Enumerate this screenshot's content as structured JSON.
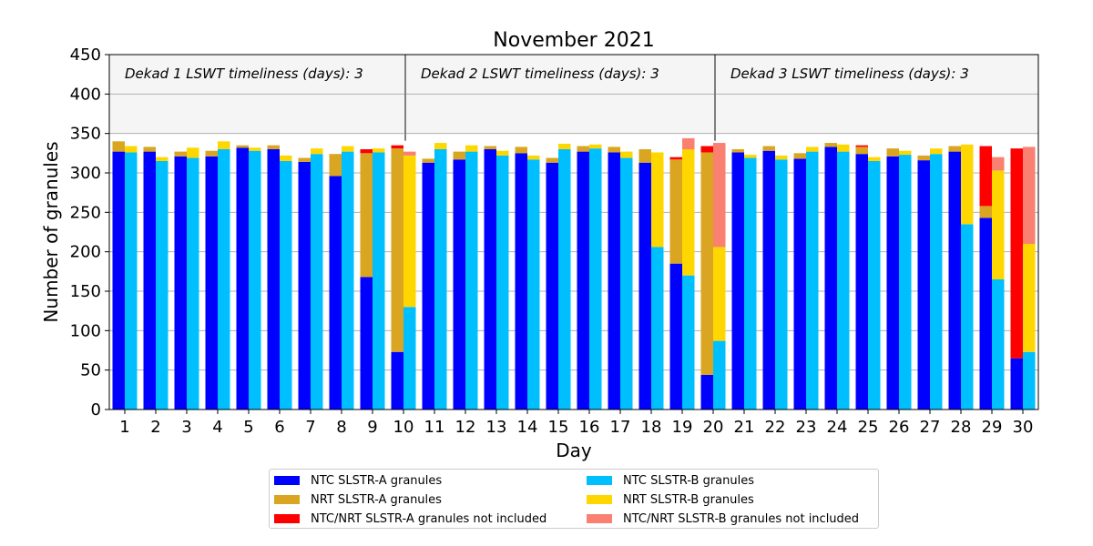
{
  "chart_data": {
    "type": "bar",
    "title": "November 2021",
    "xlabel": "Day",
    "ylabel": "Number of granules",
    "ylim": [
      0,
      450
    ],
    "yticks": [
      0,
      50,
      100,
      150,
      200,
      250,
      300,
      350,
      400,
      450
    ],
    "grid": "horizontal",
    "legend_position": "bottom",
    "categories": [
      "1",
      "2",
      "3",
      "4",
      "5",
      "6",
      "7",
      "8",
      "9",
      "10",
      "11",
      "12",
      "13",
      "14",
      "15",
      "16",
      "17",
      "18",
      "19",
      "20",
      "21",
      "22",
      "23",
      "24",
      "25",
      "26",
      "27",
      "28",
      "29",
      "30"
    ],
    "shaded_band": {
      "y_from": 350,
      "y_to": 450
    },
    "dekads": [
      {
        "label": "Dekad 1 LSWT timeliness (days): 3",
        "start_day": 1
      },
      {
        "label": "Dekad 2 LSWT timeliness (days): 3",
        "start_day": 11
      },
      {
        "label": "Dekad 3 LSWT timeliness (days): 3",
        "start_day": 21
      }
    ],
    "sensor_a": {
      "ntc": [
        327,
        327,
        321,
        321,
        332,
        330,
        314,
        296,
        168,
        73,
        313,
        317,
        330,
        325,
        313,
        327,
        326,
        313,
        185,
        44,
        326,
        328,
        318,
        333,
        324,
        321,
        316,
        327,
        243,
        65
      ],
      "nrt": [
        13,
        6,
        6,
        7,
        3,
        5,
        5,
        28,
        157,
        258,
        5,
        10,
        4,
        8,
        6,
        7,
        7,
        17,
        132,
        282,
        4,
        6,
        7,
        5,
        9,
        10,
        6,
        7,
        15,
        0
      ],
      "not_included": [
        0,
        0,
        0,
        0,
        0,
        0,
        0,
        0,
        5,
        4,
        0,
        0,
        0,
        0,
        0,
        0,
        0,
        0,
        3,
        8,
        0,
        0,
        0,
        0,
        2,
        0,
        0,
        0,
        76,
        266
      ]
    },
    "sensor_b": {
      "ntc": [
        326,
        315,
        319,
        330,
        328,
        315,
        324,
        327,
        326,
        130,
        330,
        327,
        322,
        317,
        330,
        331,
        319,
        206,
        170,
        87,
        319,
        317,
        327,
        327,
        315,
        323,
        324,
        235,
        165,
        73
      ],
      "nrt": [
        8,
        5,
        13,
        10,
        4,
        7,
        7,
        7,
        5,
        192,
        8,
        8,
        6,
        5,
        7,
        5,
        8,
        120,
        160,
        119,
        4,
        5,
        6,
        9,
        5,
        5,
        7,
        101,
        138,
        137
      ],
      "not_included": [
        0,
        0,
        0,
        0,
        0,
        0,
        0,
        0,
        0,
        5,
        0,
        0,
        0,
        0,
        0,
        0,
        0,
        0,
        14,
        132,
        0,
        0,
        0,
        0,
        0,
        0,
        0,
        0,
        17,
        123
      ]
    },
    "colors": {
      "ntc_a": "#0000ff",
      "nrt_a": "#daa520",
      "ni_a": "#ff0000",
      "ntc_b": "#00bfff",
      "nrt_b": "#ffd700",
      "ni_b": "#fa8072",
      "band": "#f5f5f5",
      "divider": "#808080",
      "grid": "#b0b0b0"
    },
    "legend": [
      {
        "label": "NTC SLSTR-A granules",
        "color": "#0000ff"
      },
      {
        "label": "NTC SLSTR-B granules",
        "color": "#00bfff"
      },
      {
        "label": "NRT SLSTR-A granules",
        "color": "#daa520"
      },
      {
        "label": "NRT SLSTR-B granules",
        "color": "#ffd700"
      },
      {
        "label": "NTC/NRT SLSTR-A granules not included",
        "color": "#ff0000"
      },
      {
        "label": "NTC/NRT SLSTR-B granules not included",
        "color": "#fa8072"
      }
    ]
  }
}
